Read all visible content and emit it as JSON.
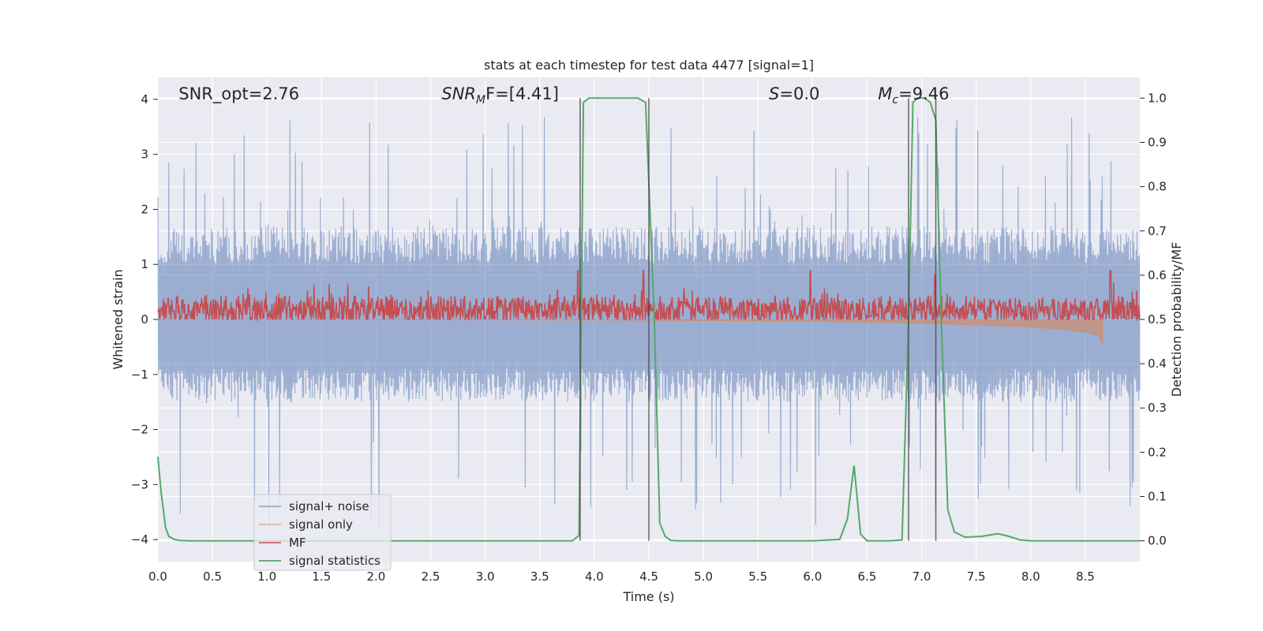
{
  "chart_data": {
    "type": "line",
    "title": "stats at each timestep for test data 4477 [signal=1]",
    "xlabel": "Time (s)",
    "ylabel_left": "Whitened strain",
    "ylabel_right": "Detection probability/MF",
    "xlim": [
      0,
      9.0
    ],
    "ylim_left": [
      -4.4,
      4.4
    ],
    "ylim_right": [
      -0.047,
      1.047
    ],
    "x_ticks": [
      0,
      0.5,
      1,
      1.5,
      2,
      2.5,
      3,
      3.5,
      4,
      4.5,
      5,
      5.5,
      6,
      6.5,
      7,
      7.5,
      8,
      8.5
    ],
    "x_tick_labels": [
      "0.0",
      "0.5",
      "1.0",
      "1.5",
      "2.0",
      "2.5",
      "3.0",
      "3.5",
      "4.0",
      "4.5",
      "5.0",
      "5.5",
      "6.0",
      "6.5",
      "7.0",
      "7.5",
      "8.0",
      "8.5"
    ],
    "y_ticks_left": [
      -4,
      -3,
      -2,
      -1,
      0,
      1,
      2,
      3,
      4
    ],
    "y_tick_labels_left": [
      "−4",
      "−3",
      "−2",
      "−1",
      "0",
      "1",
      "2",
      "3",
      "4"
    ],
    "y_ticks_right": [
      0.0,
      0.1,
      0.2,
      0.3,
      0.4,
      0.5,
      0.6,
      0.7,
      0.8,
      0.9,
      1.0
    ],
    "y_tick_labels_right": [
      "0.0",
      "0.1",
      "0.2",
      "0.3",
      "0.4",
      "0.5",
      "0.6",
      "0.7",
      "0.8",
      "0.9",
      "1.0"
    ],
    "grid": true,
    "legend_position": "lower-left",
    "annotations": [
      {
        "label": "SNR_opt=2.76",
        "x": 0.19,
        "y": 4.1
      },
      {
        "label": "SNR_MF=[4.41]",
        "x": 2.6,
        "y": 4.1,
        "italic_part": "SNR",
        "subscript": "M",
        "suffix": "F=[4.41]"
      },
      {
        "label": "S=0.0",
        "x": 5.6,
        "y": 4.1,
        "italic_part": "S",
        "suffix": "=0.0"
      },
      {
        "label": "M_c=9.46",
        "x": 6.6,
        "y": 4.1,
        "italic_part": "M",
        "subscript": "c",
        "suffix": "=9.46"
      }
    ],
    "vertical_lines": [
      3.87,
      4.5,
      6.88,
      7.13
    ],
    "series": [
      {
        "name": "signal+ noise",
        "color": "#4c72b0",
        "axis": "left",
        "generated": "noise",
        "n_points": 1800,
        "envelope_pos": 1.7,
        "envelope_neg": -1.5,
        "peak_max": 3.7,
        "trough_min": -3.8
      },
      {
        "name": "signal only",
        "color": "#dd8452",
        "axis": "left",
        "x": [
          0,
          3.0,
          4.0,
          5.0,
          6.0,
          6.5,
          7.0,
          7.5,
          8.0,
          8.3,
          8.5,
          8.62,
          8.66
        ],
        "values_upper": [
          0,
          0,
          0,
          0,
          0,
          0,
          0,
          0,
          0,
          0,
          0,
          0,
          0
        ],
        "values_lower": [
          0,
          -0.005,
          -0.01,
          -0.02,
          -0.035,
          -0.05,
          -0.07,
          -0.1,
          -0.14,
          -0.18,
          -0.23,
          -0.3,
          -0.42
        ]
      },
      {
        "name": "MF",
        "color": "#c44e52",
        "axis": "right",
        "generated": "mf",
        "n_points": 1800,
        "base": 0.52,
        "amplitude": 0.04,
        "spikes": [
          [
            3.85,
            0.61
          ],
          [
            4.45,
            0.61
          ],
          [
            5.98,
            0.61
          ],
          [
            7.12,
            0.6
          ],
          [
            8.73,
            0.61
          ]
        ]
      },
      {
        "name": "signal statistics",
        "color": "#55a868",
        "axis": "right",
        "x": [
          0.0,
          0.03,
          0.07,
          0.1,
          0.15,
          0.2,
          0.3,
          0.5,
          1.0,
          2.0,
          3.0,
          3.5,
          3.8,
          3.86,
          3.9,
          3.95,
          4.0,
          4.2,
          4.4,
          4.47,
          4.55,
          4.6,
          4.65,
          4.7,
          4.8,
          5.0,
          5.5,
          6.0,
          6.25,
          6.32,
          6.38,
          6.44,
          6.5,
          6.7,
          6.82,
          6.88,
          6.92,
          6.96,
          7.03,
          7.08,
          7.13,
          7.18,
          7.24,
          7.3,
          7.4,
          7.55,
          7.7,
          7.8,
          7.9,
          8.0,
          8.5,
          9.0
        ],
        "values": [
          0.19,
          0.11,
          0.03,
          0.01,
          0.003,
          0.001,
          0.0,
          0.0,
          0.0,
          0.0,
          0.0,
          0.0,
          0.0,
          0.012,
          0.99,
          1.0,
          1.0,
          1.0,
          1.0,
          0.99,
          0.5,
          0.04,
          0.01,
          0.001,
          0.0,
          0.0,
          0.0,
          0.0,
          0.003,
          0.05,
          0.17,
          0.015,
          0.0,
          0.0,
          0.002,
          0.5,
          0.99,
          1.0,
          1.0,
          0.99,
          0.95,
          0.5,
          0.07,
          0.02,
          0.008,
          0.01,
          0.016,
          0.01,
          0.002,
          0.0,
          0.0,
          0.0
        ]
      }
    ]
  }
}
